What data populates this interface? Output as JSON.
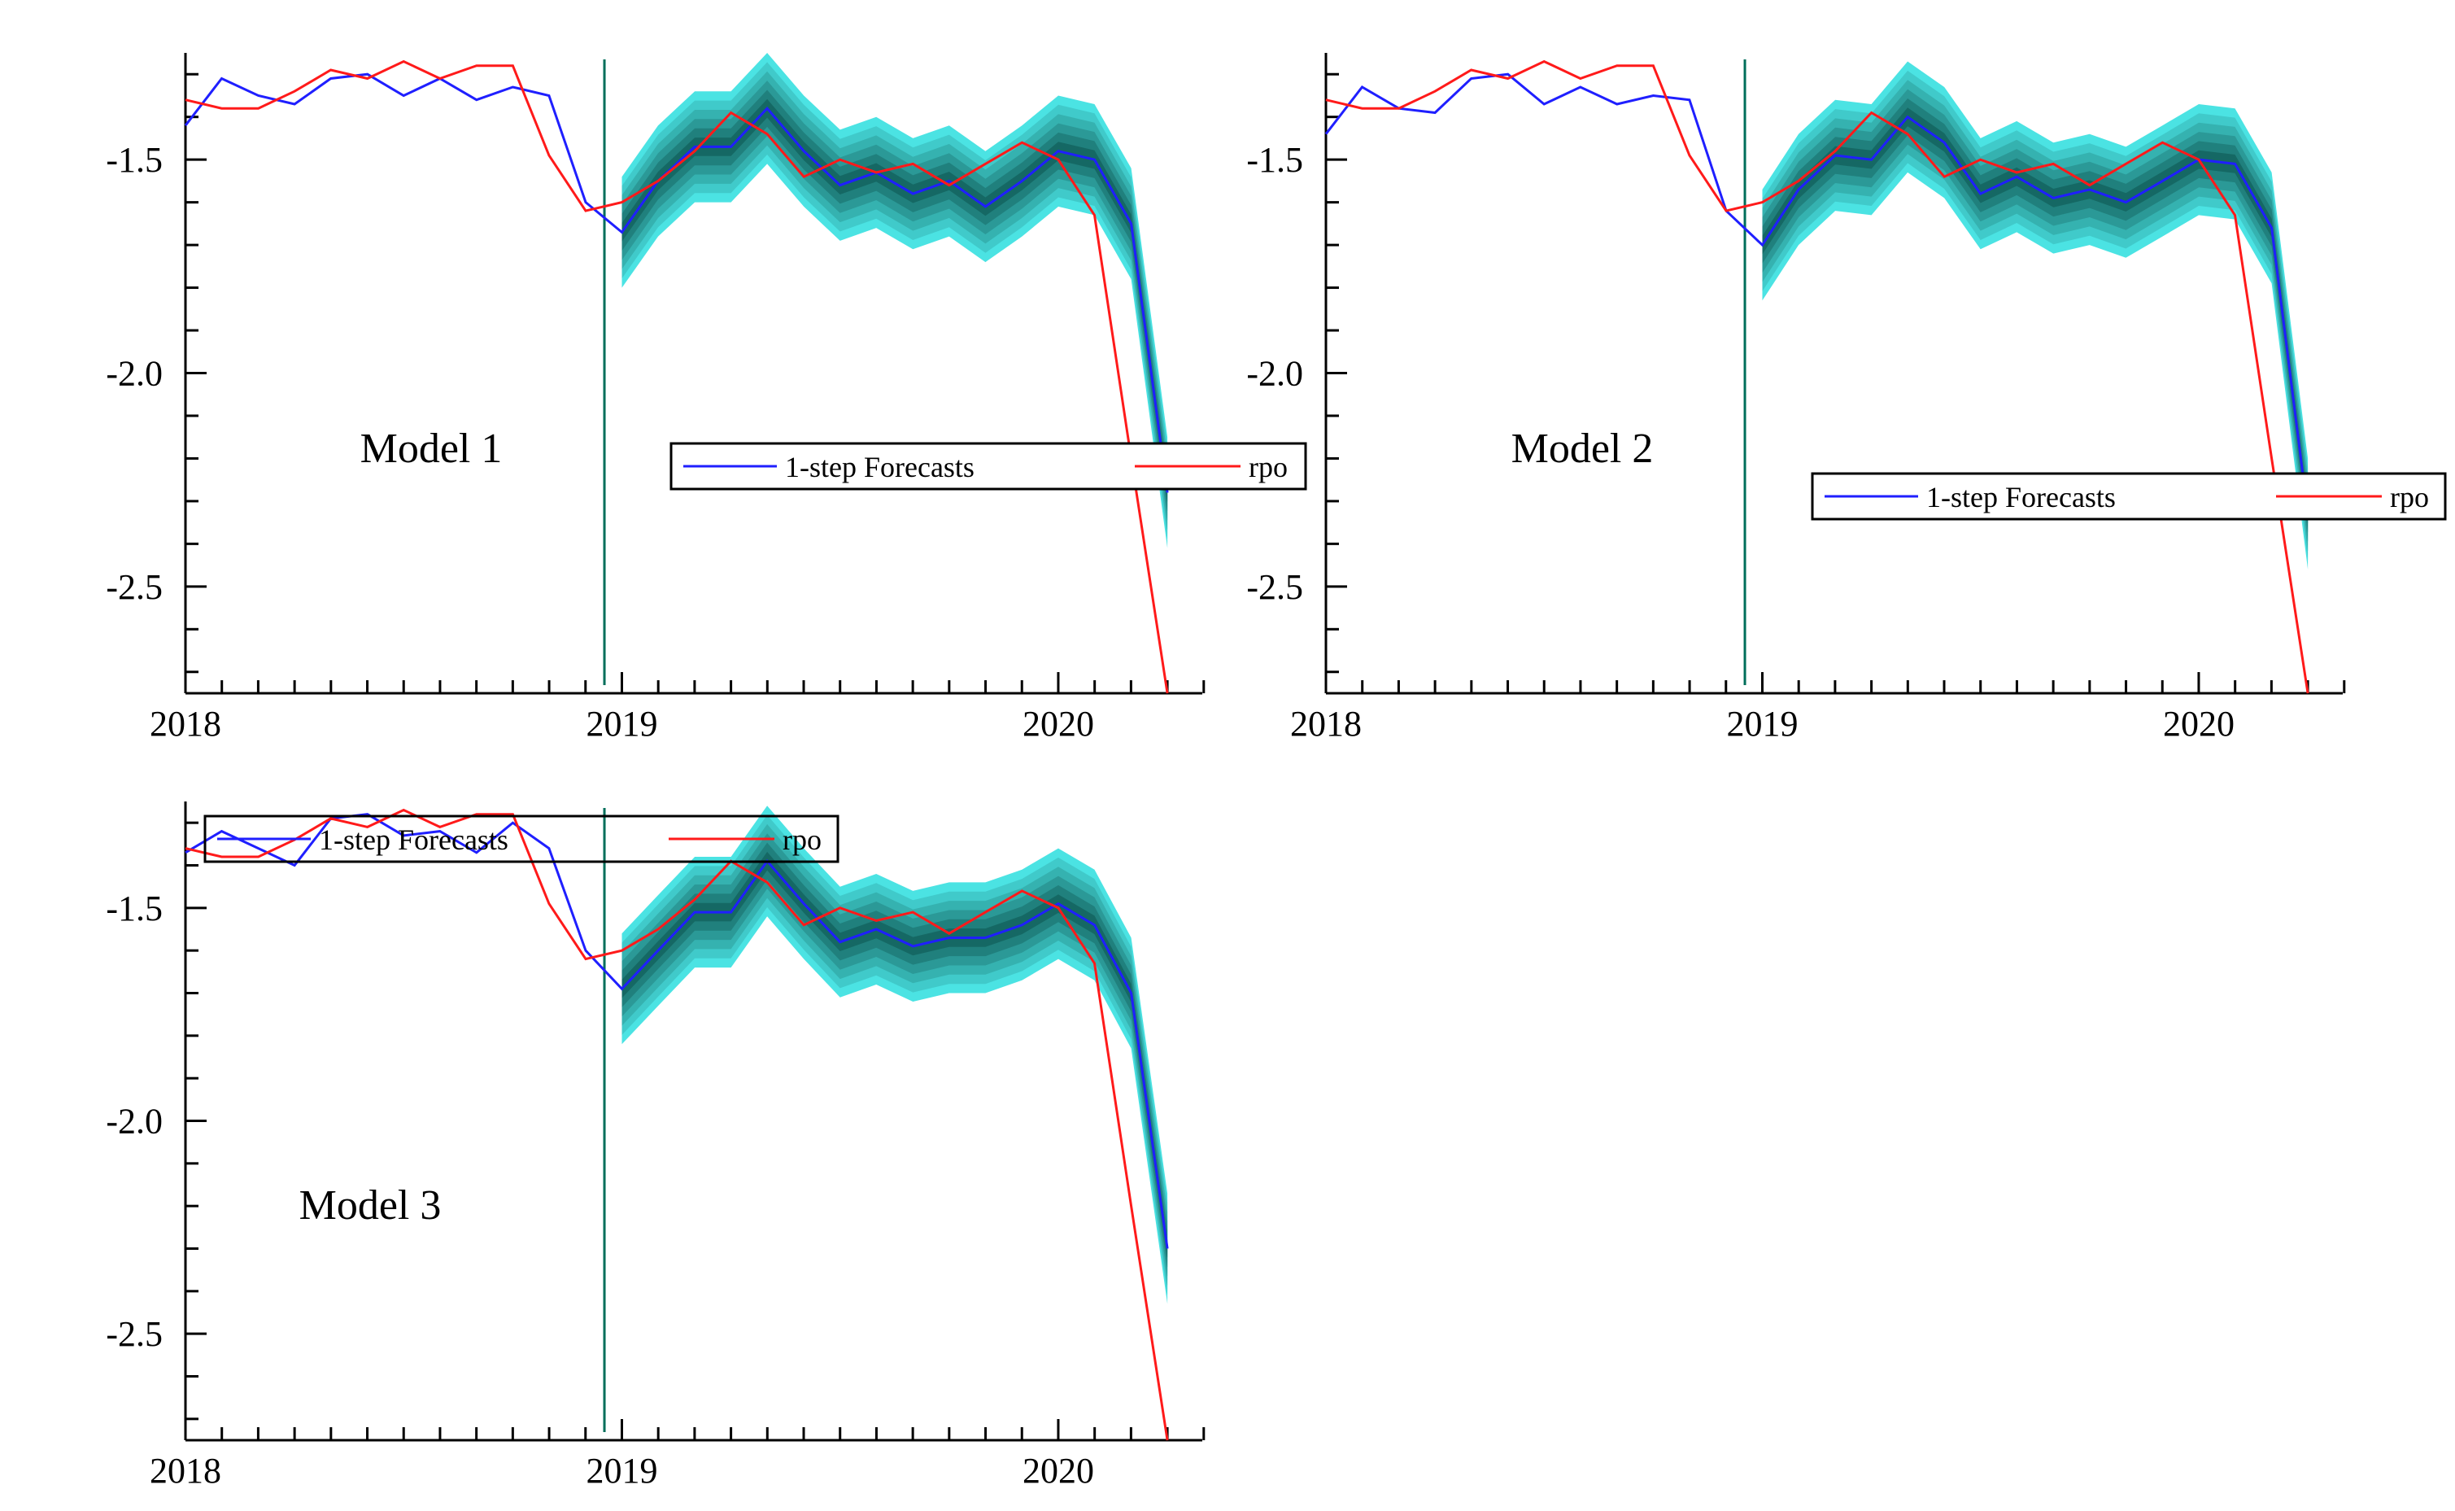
{
  "figure": {
    "x_tick_labels": [
      "2018",
      "2019",
      "2020"
    ],
    "y_tick_labels": [
      "-1.5",
      "-2.0",
      "-2.5"
    ],
    "colors": {
      "forecast": "#1f1fff",
      "actual": "#ff1a1a",
      "forecast_start_line": "#006e5a",
      "band_outer": "#4be3e3",
      "band_inner": "#0a4f4a"
    }
  },
  "chart_data": [
    {
      "type": "line",
      "title": "Model 1",
      "legend": [
        "1-step Forecasts",
        "rpo"
      ],
      "legend_position": "right-middle",
      "x_axis": {
        "min": 2018.0,
        "max": 2020.33,
        "ticks": [
          2018,
          2019,
          2020
        ],
        "minor_ticks_per_year": 12
      },
      "y_axis": {
        "min": -2.75,
        "max": -1.25,
        "ticks": [
          -1.5,
          -2.0,
          -2.5
        ]
      },
      "forecast_start": 2018.96,
      "series": [
        {
          "name": "rpo",
          "x": [
            2018.0,
            2018.083,
            2018.167,
            2018.25,
            2018.333,
            2018.417,
            2018.5,
            2018.583,
            2018.667,
            2018.75,
            2018.833,
            2018.917,
            2019.0,
            2019.083,
            2019.167,
            2019.25,
            2019.333,
            2019.417,
            2019.5,
            2019.583,
            2019.667,
            2019.75,
            2019.833,
            2019.917,
            2020.0,
            2020.083,
            2020.167,
            2020.25
          ],
          "values": [
            -1.36,
            -1.38,
            -1.38,
            -1.34,
            -1.29,
            -1.31,
            -1.27,
            -1.31,
            -1.28,
            -1.28,
            -1.49,
            -1.62,
            -1.6,
            -1.55,
            -1.48,
            -1.39,
            -1.44,
            -1.54,
            -1.5,
            -1.53,
            -1.51,
            -1.56,
            -1.51,
            -1.46,
            -1.5,
            -1.63,
            -2.2,
            -2.75
          ]
        },
        {
          "name": "1-step Forecasts",
          "x": [
            2018.0,
            2018.083,
            2018.167,
            2018.25,
            2018.333,
            2018.417,
            2018.5,
            2018.583,
            2018.667,
            2018.75,
            2018.833,
            2018.917,
            2019.0,
            2019.083,
            2019.167,
            2019.25,
            2019.333,
            2019.417,
            2019.5,
            2019.583,
            2019.667,
            2019.75,
            2019.833,
            2019.917,
            2020.0,
            2020.083,
            2020.167,
            2020.25
          ],
          "values": [
            -1.42,
            -1.31,
            -1.35,
            -1.37,
            -1.31,
            -1.3,
            -1.35,
            -1.31,
            -1.36,
            -1.33,
            -1.35,
            -1.6,
            -1.67,
            -1.55,
            -1.47,
            -1.47,
            -1.38,
            -1.48,
            -1.56,
            -1.53,
            -1.58,
            -1.55,
            -1.61,
            -1.55,
            -1.48,
            -1.5,
            -1.65,
            -2.28
          ]
        },
        {
          "name": "forecast band",
          "x": [
            2019.0,
            2019.083,
            2019.167,
            2019.25,
            2019.333,
            2019.417,
            2019.5,
            2019.583,
            2019.667,
            2019.75,
            2019.833,
            2019.917,
            2020.0,
            2020.083,
            2020.167,
            2020.25
          ],
          "center": [
            -1.67,
            -1.55,
            -1.47,
            -1.47,
            -1.38,
            -1.48,
            -1.56,
            -1.53,
            -1.58,
            -1.55,
            -1.61,
            -1.55,
            -1.48,
            -1.5,
            -1.65,
            -2.28
          ],
          "half_width": 0.13
        }
      ]
    },
    {
      "type": "line",
      "title": "Model 2",
      "legend": [
        "1-step Forecasts",
        "rpo"
      ],
      "legend_position": "right-middle",
      "x_axis": {
        "min": 2018.0,
        "max": 2020.33,
        "ticks": [
          2018,
          2019,
          2020
        ],
        "minor_ticks_per_year": 12
      },
      "y_axis": {
        "min": -2.75,
        "max": -1.25,
        "ticks": [
          -1.5,
          -2.0,
          -2.5
        ]
      },
      "forecast_start": 2018.96,
      "series": [
        {
          "name": "rpo",
          "x": [
            2018.0,
            2018.083,
            2018.167,
            2018.25,
            2018.333,
            2018.417,
            2018.5,
            2018.583,
            2018.667,
            2018.75,
            2018.833,
            2018.917,
            2019.0,
            2019.083,
            2019.167,
            2019.25,
            2019.333,
            2019.417,
            2019.5,
            2019.583,
            2019.667,
            2019.75,
            2019.833,
            2019.917,
            2020.0,
            2020.083,
            2020.167,
            2020.25
          ],
          "values": [
            -1.36,
            -1.38,
            -1.38,
            -1.34,
            -1.29,
            -1.31,
            -1.27,
            -1.31,
            -1.28,
            -1.28,
            -1.49,
            -1.62,
            -1.6,
            -1.55,
            -1.48,
            -1.39,
            -1.44,
            -1.54,
            -1.5,
            -1.53,
            -1.51,
            -1.56,
            -1.51,
            -1.46,
            -1.5,
            -1.63,
            -2.2,
            -2.75
          ]
        },
        {
          "name": "1-step Forecasts",
          "x": [
            2018.0,
            2018.083,
            2018.167,
            2018.25,
            2018.333,
            2018.417,
            2018.5,
            2018.583,
            2018.667,
            2018.75,
            2018.833,
            2018.917,
            2019.0,
            2019.083,
            2019.167,
            2019.25,
            2019.333,
            2019.417,
            2019.5,
            2019.583,
            2019.667,
            2019.75,
            2019.833,
            2019.917,
            2020.0,
            2020.083,
            2020.167,
            2020.25
          ],
          "values": [
            -1.44,
            -1.33,
            -1.38,
            -1.39,
            -1.31,
            -1.3,
            -1.37,
            -1.33,
            -1.37,
            -1.35,
            -1.36,
            -1.62,
            -1.7,
            -1.57,
            -1.49,
            -1.5,
            -1.4,
            -1.46,
            -1.58,
            -1.54,
            -1.59,
            -1.57,
            -1.6,
            -1.55,
            -1.5,
            -1.51,
            -1.66,
            -2.33
          ]
        },
        {
          "name": "forecast band",
          "x": [
            2019.0,
            2019.083,
            2019.167,
            2019.25,
            2019.333,
            2019.417,
            2019.5,
            2019.583,
            2019.667,
            2019.75,
            2019.833,
            2019.917,
            2020.0,
            2020.083,
            2020.167,
            2020.25
          ],
          "center": [
            -1.7,
            -1.57,
            -1.49,
            -1.5,
            -1.4,
            -1.46,
            -1.58,
            -1.54,
            -1.59,
            -1.57,
            -1.6,
            -1.55,
            -1.5,
            -1.51,
            -1.66,
            -2.33
          ],
          "half_width": 0.13
        }
      ]
    },
    {
      "type": "line",
      "title": "Model 3",
      "legend": [
        "1-step Forecasts",
        "rpo"
      ],
      "legend_position": "top-left",
      "x_axis": {
        "min": 2018.0,
        "max": 2020.33,
        "ticks": [
          2018,
          2019,
          2020
        ],
        "minor_ticks_per_year": 12
      },
      "y_axis": {
        "min": -2.75,
        "max": -1.25,
        "ticks": [
          -1.5,
          -2.0,
          -2.5
        ]
      },
      "forecast_start": 2018.96,
      "series": [
        {
          "name": "rpo",
          "x": [
            2018.0,
            2018.083,
            2018.167,
            2018.25,
            2018.333,
            2018.417,
            2018.5,
            2018.583,
            2018.667,
            2018.75,
            2018.833,
            2018.917,
            2019.0,
            2019.083,
            2019.167,
            2019.25,
            2019.333,
            2019.417,
            2019.5,
            2019.583,
            2019.667,
            2019.75,
            2019.833,
            2019.917,
            2020.0,
            2020.083,
            2020.167,
            2020.25
          ],
          "values": [
            -1.36,
            -1.38,
            -1.38,
            -1.34,
            -1.29,
            -1.31,
            -1.27,
            -1.31,
            -1.28,
            -1.28,
            -1.49,
            -1.62,
            -1.6,
            -1.55,
            -1.48,
            -1.39,
            -1.44,
            -1.54,
            -1.5,
            -1.53,
            -1.51,
            -1.56,
            -1.51,
            -1.46,
            -1.5,
            -1.63,
            -2.2,
            -2.75
          ]
        },
        {
          "name": "1-step Forecasts",
          "x": [
            2018.0,
            2018.083,
            2018.167,
            2018.25,
            2018.333,
            2018.417,
            2018.5,
            2018.583,
            2018.667,
            2018.75,
            2018.833,
            2018.917,
            2019.0,
            2019.083,
            2019.167,
            2019.25,
            2019.333,
            2019.417,
            2019.5,
            2019.583,
            2019.667,
            2019.75,
            2019.833,
            2019.917,
            2020.0,
            2020.083,
            2020.167,
            2020.25
          ],
          "values": [
            -1.37,
            -1.32,
            -1.36,
            -1.4,
            -1.29,
            -1.28,
            -1.33,
            -1.32,
            -1.37,
            -1.3,
            -1.36,
            -1.6,
            -1.69,
            -1.6,
            -1.51,
            -1.51,
            -1.39,
            -1.49,
            -1.58,
            -1.55,
            -1.59,
            -1.57,
            -1.57,
            -1.54,
            -1.49,
            -1.54,
            -1.7,
            -2.3
          ]
        },
        {
          "name": "forecast band",
          "x": [
            2019.0,
            2019.083,
            2019.167,
            2019.25,
            2019.333,
            2019.417,
            2019.5,
            2019.583,
            2019.667,
            2019.75,
            2019.833,
            2019.917,
            2020.0,
            2020.083,
            2020.167,
            2020.25
          ],
          "center": [
            -1.69,
            -1.6,
            -1.51,
            -1.51,
            -1.39,
            -1.49,
            -1.58,
            -1.55,
            -1.59,
            -1.57,
            -1.57,
            -1.54,
            -1.49,
            -1.54,
            -1.7,
            -2.3
          ],
          "half_width": 0.13
        }
      ]
    }
  ]
}
